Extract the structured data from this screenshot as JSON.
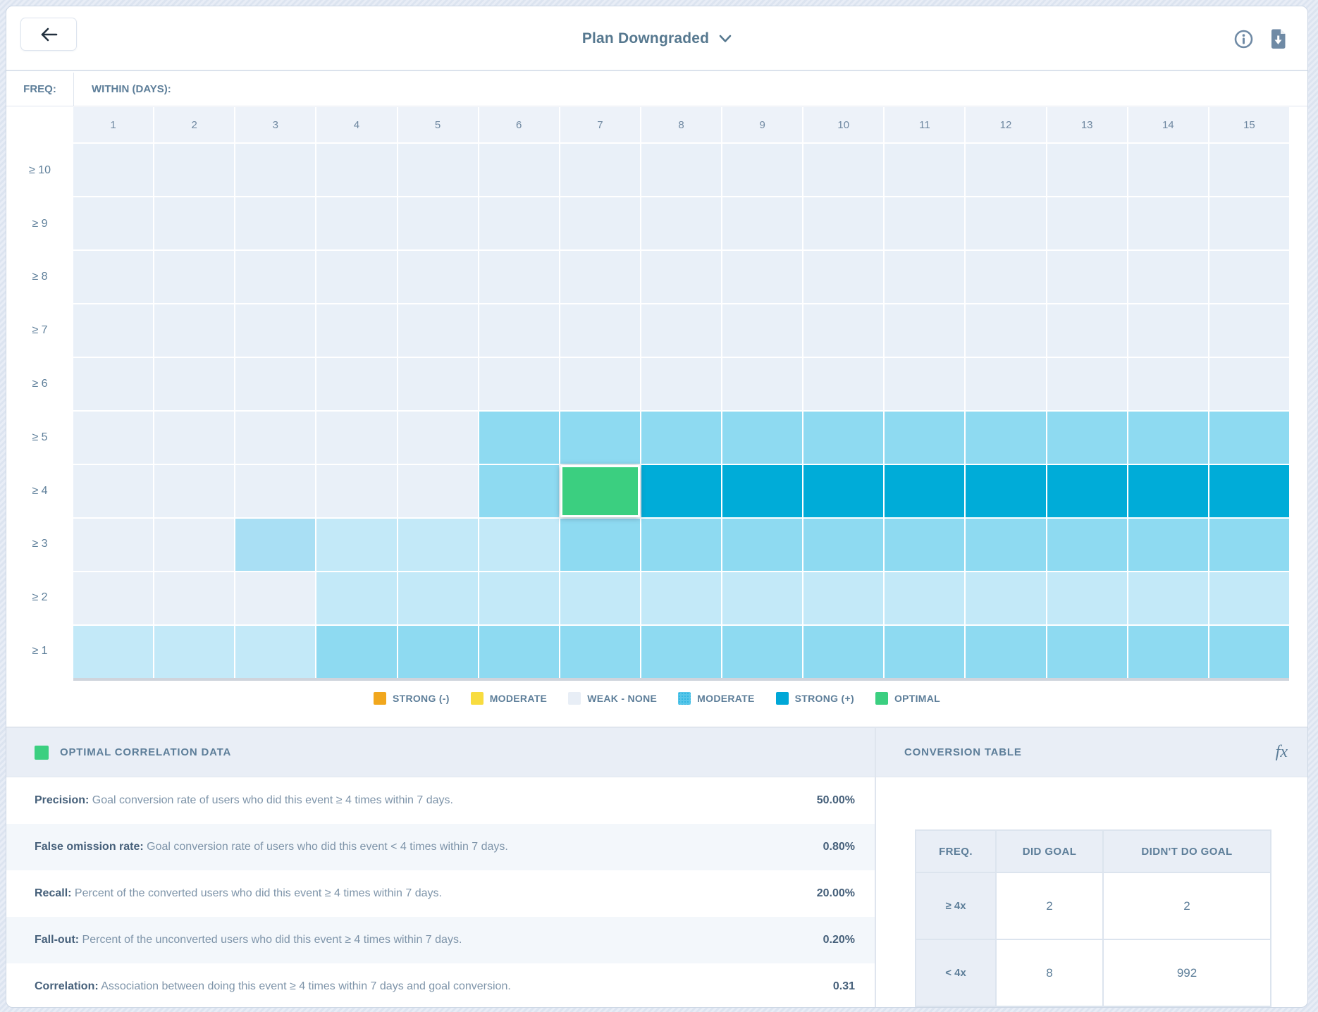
{
  "topbar": {
    "title": "Plan Downgraded"
  },
  "axis": {
    "freq_label": "FREQ:",
    "within_label": "WITHIN (DAYS):"
  },
  "heatmap": {
    "columns": [
      "1",
      "2",
      "3",
      "4",
      "5",
      "6",
      "7",
      "8",
      "9",
      "10",
      "11",
      "12",
      "13",
      "14",
      "15"
    ],
    "levels": {
      "w": "#e9f0f8",
      "l": "#c3e9f8",
      "ml": "#a9dff4",
      "m": "#8edaf1",
      "s": "#00acd8",
      "o": "#3bcf80"
    },
    "rows": [
      {
        "label": "≥ 10",
        "cells": [
          "w",
          "w",
          "w",
          "w",
          "w",
          "w",
          "w",
          "w",
          "w",
          "w",
          "w",
          "w",
          "w",
          "w",
          "w"
        ]
      },
      {
        "label": "≥ 9",
        "cells": [
          "w",
          "w",
          "w",
          "w",
          "w",
          "w",
          "w",
          "w",
          "w",
          "w",
          "w",
          "w",
          "w",
          "w",
          "w"
        ]
      },
      {
        "label": "≥ 8",
        "cells": [
          "w",
          "w",
          "w",
          "w",
          "w",
          "w",
          "w",
          "w",
          "w",
          "w",
          "w",
          "w",
          "w",
          "w",
          "w"
        ]
      },
      {
        "label": "≥ 7",
        "cells": [
          "w",
          "w",
          "w",
          "w",
          "w",
          "w",
          "w",
          "w",
          "w",
          "w",
          "w",
          "w",
          "w",
          "w",
          "w"
        ]
      },
      {
        "label": "≥ 6",
        "cells": [
          "w",
          "w",
          "w",
          "w",
          "w",
          "w",
          "w",
          "w",
          "w",
          "w",
          "w",
          "w",
          "w",
          "w",
          "w"
        ]
      },
      {
        "label": "≥ 5",
        "cells": [
          "w",
          "w",
          "w",
          "w",
          "w",
          "m",
          "m",
          "m",
          "m",
          "m",
          "m",
          "m",
          "m",
          "m",
          "m"
        ]
      },
      {
        "label": "≥ 4",
        "cells": [
          "w",
          "w",
          "w",
          "w",
          "w",
          "m",
          "o",
          "s",
          "s",
          "s",
          "s",
          "s",
          "s",
          "s",
          "s"
        ]
      },
      {
        "label": "≥ 3",
        "cells": [
          "w",
          "w",
          "ml",
          "l",
          "l",
          "l",
          "m",
          "m",
          "m",
          "m",
          "m",
          "m",
          "m",
          "m",
          "m"
        ]
      },
      {
        "label": "≥ 2",
        "cells": [
          "w",
          "w",
          "w",
          "l",
          "l",
          "l",
          "l",
          "l",
          "l",
          "l",
          "l",
          "l",
          "l",
          "l",
          "l"
        ]
      },
      {
        "label": "≥ 1",
        "cells": [
          "l",
          "l",
          "l",
          "m",
          "m",
          "m",
          "m",
          "m",
          "m",
          "m",
          "m",
          "m",
          "m",
          "m",
          "m"
        ]
      }
    ],
    "optimal_cell": {
      "row": "≥ 4",
      "column": "7"
    }
  },
  "legend": [
    {
      "label": "STRONG (-)",
      "color": "#f1a71d",
      "dotted": false
    },
    {
      "label": "MODERATE",
      "color": "#f8dc3f",
      "dotted": false
    },
    {
      "label": "WEAK - NONE",
      "color": "#e8eef6",
      "dotted": false
    },
    {
      "label": "MODERATE",
      "color": "#58c6e9",
      "dotted": true
    },
    {
      "label": "STRONG (+)",
      "color": "#00a7d7",
      "dotted": false
    },
    {
      "label": "OPTIMAL",
      "color": "#3bcf80",
      "dotted": false
    }
  ],
  "optimal_panel": {
    "title": "OPTIMAL CORRELATION DATA",
    "swatch_color": "#3bcf80",
    "metrics": [
      {
        "label": "Precision:",
        "desc": "Goal conversion rate of users who did this event ≥ 4 times within 7 days.",
        "value": "50.00%"
      },
      {
        "label": "False omission rate:",
        "desc": "Goal conversion rate of users who did this event < 4 times within 7 days.",
        "value": "0.80%"
      },
      {
        "label": "Recall:",
        "desc": "Percent of the converted users who did this event ≥ 4 times within 7 days.",
        "value": "20.00%"
      },
      {
        "label": "Fall-out:",
        "desc": "Percent of the unconverted users who did this event ≥ 4 times within 7 days.",
        "value": "0.20%"
      },
      {
        "label": "Correlation:",
        "desc": "Association between doing this event ≥ 4 times within 7 days and goal conversion.",
        "value": "0.31"
      }
    ]
  },
  "conversion_panel": {
    "title": "CONVERSION TABLE",
    "fx_label": "fx",
    "headers": [
      "FREQ.",
      "DID GOAL",
      "DIDN'T DO GOAL"
    ],
    "rows": [
      {
        "freq": "≥ 4x",
        "did": "2",
        "didnt": "2"
      },
      {
        "freq": "< 4x",
        "did": "8",
        "didnt": "992"
      }
    ]
  }
}
